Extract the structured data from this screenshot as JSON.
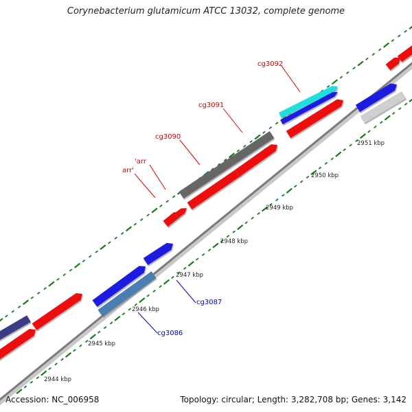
{
  "title": "Corynebacterium glutamicum ATCC 13032, complete genome",
  "accession": "Accession: NC_006958",
  "stats": "Topology: circular; Length: 3,282,708 bp; Genes: 3,142",
  "colors": {
    "backbone": "#8a8a8a",
    "tick": "#1a7a1a",
    "forward_gene": "#ee1111",
    "reverse_gene": "#1a1ae0",
    "hypothetical": "#666666",
    "rna": "#22dddd",
    "label_forward": "#cc0000",
    "label_reverse": "#0000bb"
  },
  "scale_labels": [
    {
      "text": "2944 kbp"
    },
    {
      "text": "2945 kbp"
    },
    {
      "text": "2946 kbp"
    },
    {
      "text": "2947 kbp"
    },
    {
      "text": "2948 kbp"
    },
    {
      "text": "2949 kbp"
    },
    {
      "text": "2950 kbp"
    },
    {
      "text": "2951 kbp"
    }
  ],
  "gene_labels": [
    {
      "text": "cg3092",
      "strand": "forward"
    },
    {
      "text": "cg3091",
      "strand": "forward"
    },
    {
      "text": "cg3090",
      "strand": "forward"
    },
    {
      "text": "'arr",
      "strand": "forward"
    },
    {
      "text": "arr'",
      "strand": "forward"
    },
    {
      "text": "cg3087",
      "strand": "reverse"
    },
    {
      "text": "cg3086",
      "strand": "reverse"
    }
  ]
}
